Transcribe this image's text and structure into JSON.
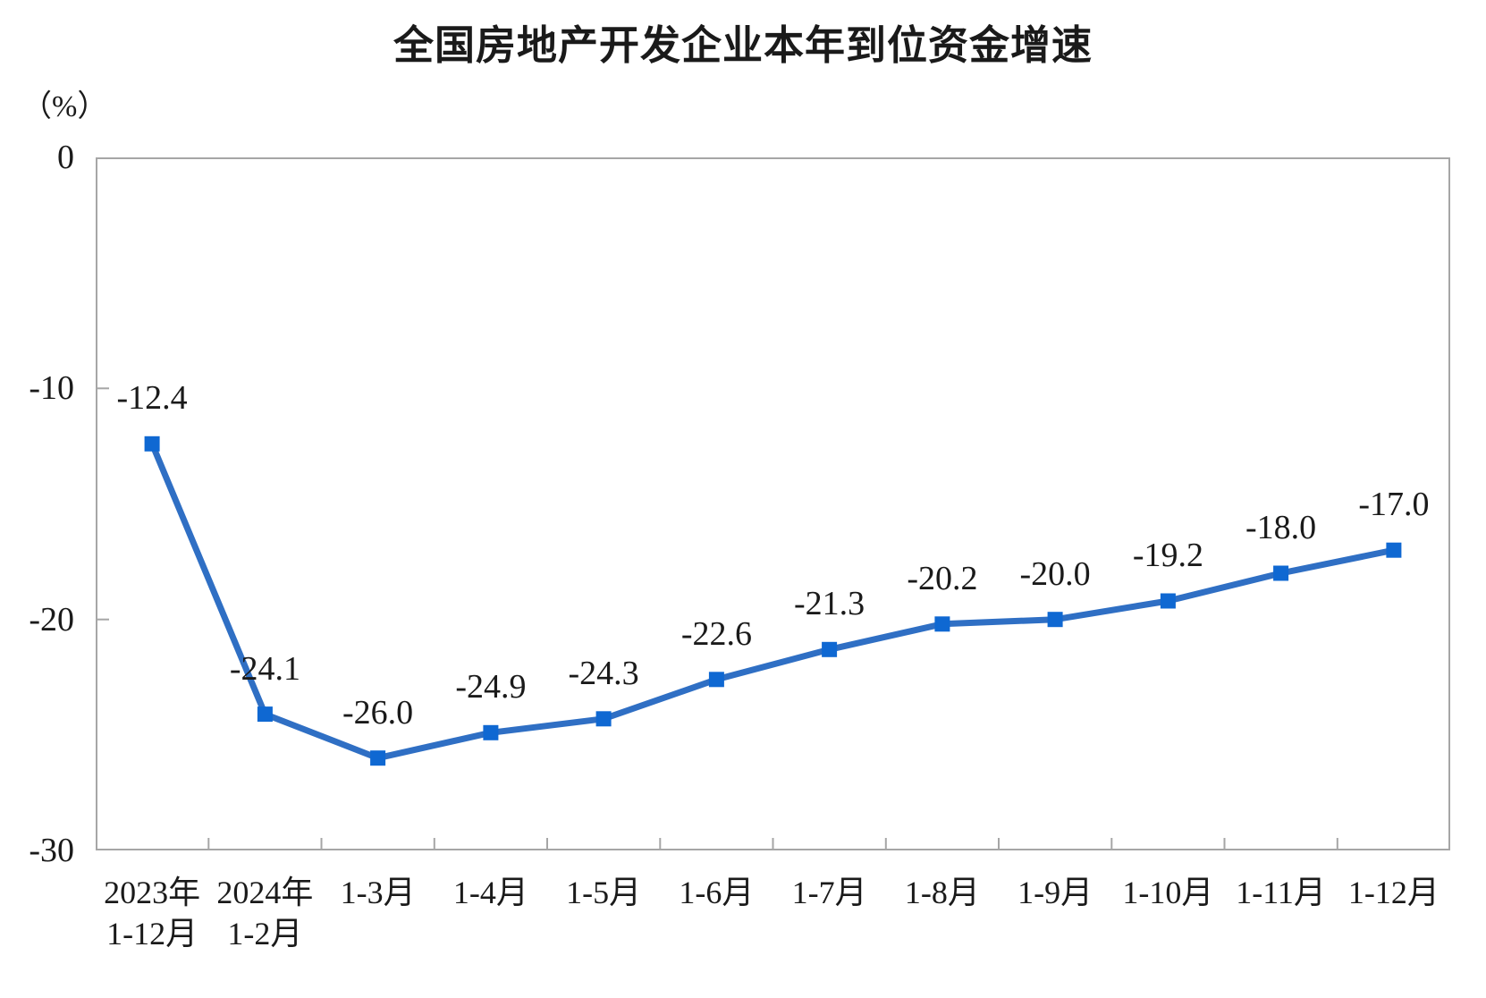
{
  "chart_data": {
    "type": "line",
    "title": "全国房地产开发企业本年到位资金增速",
    "unit_label": "（%）",
    "categories": [
      {
        "line1": "2023年",
        "line2": "1-12月"
      },
      {
        "line1": "2024年",
        "line2": "1-2月"
      },
      {
        "line1": "1-3月",
        "line2": ""
      },
      {
        "line1": "1-4月",
        "line2": ""
      },
      {
        "line1": "1-5月",
        "line2": ""
      },
      {
        "line1": "1-6月",
        "line2": ""
      },
      {
        "line1": "1-7月",
        "line2": ""
      },
      {
        "line1": "1-8月",
        "line2": ""
      },
      {
        "line1": "1-9月",
        "line2": ""
      },
      {
        "line1": "1-10月",
        "line2": ""
      },
      {
        "line1": "1-11月",
        "line2": ""
      },
      {
        "line1": "1-12月",
        "line2": ""
      }
    ],
    "values": [
      -12.4,
      -24.1,
      -26.0,
      -24.9,
      -24.3,
      -22.6,
      -21.3,
      -20.2,
      -20.0,
      -19.2,
      -18.0,
      -17.0
    ],
    "data_label_decimals": 1,
    "ylim": [
      -30,
      0
    ],
    "yticks": [
      0,
      -10,
      -20,
      -30
    ],
    "grid": false,
    "legend": "none",
    "colors": {
      "line": "#2F6FC4",
      "marker": "#0F68D2",
      "axis": "#A6A6A6",
      "text": "#1A1A1A"
    }
  }
}
